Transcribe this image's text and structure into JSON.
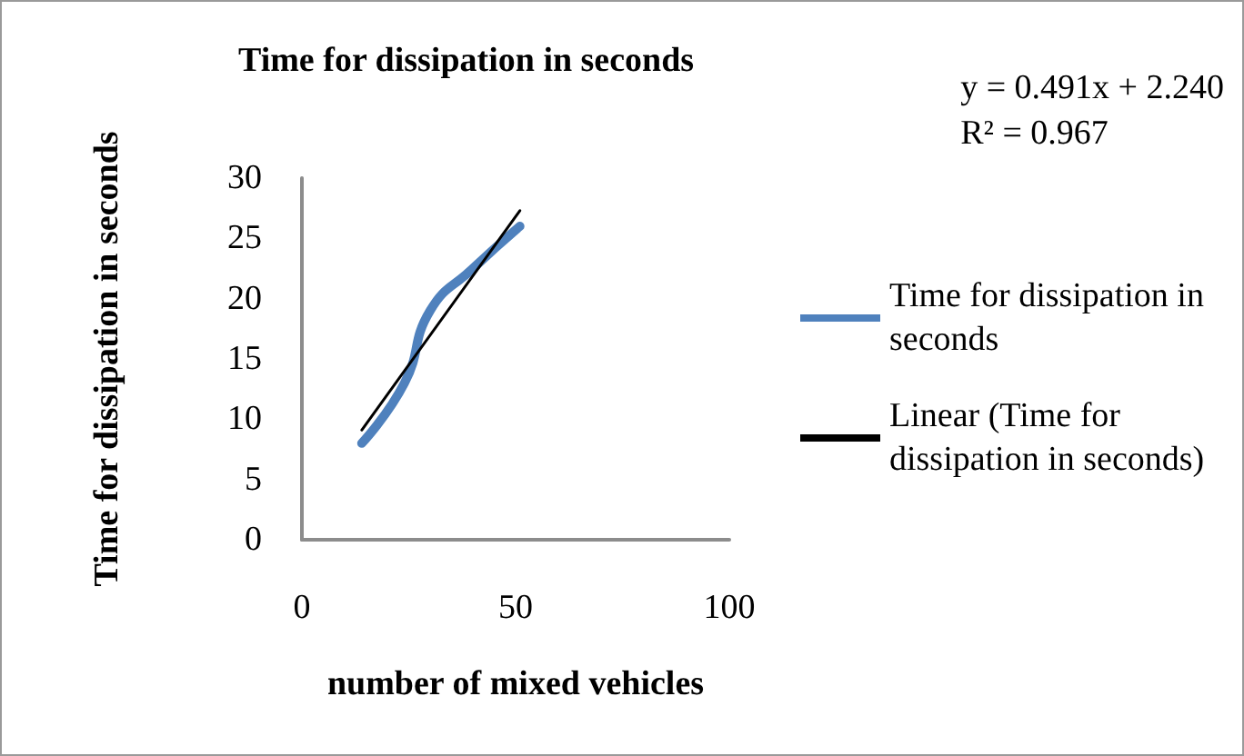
{
  "chart_data": {
    "type": "line",
    "title": "Time for dissipation in seconds",
    "xlabel": "number of mixed vehicles",
    "ylabel": "Time for dissipation in seconds",
    "annotations": [
      "y = 0.491x + 2.240\nR² = 0.967"
    ],
    "series": [
      {
        "name": "Time for dissipation in seconds",
        "color": "#4f81bd",
        "x": [
          14,
          24,
          30,
          40,
          51
        ],
        "values": [
          8,
          13,
          19,
          22.5,
          26
        ]
      },
      {
        "name": "Linear (Time for dissipation in seconds)",
        "color": "#000000",
        "x": [
          14,
          51
        ],
        "values": [
          9.1,
          27.3
        ]
      }
    ],
    "xlim": [
      0,
      100
    ],
    "xticks": [
      0,
      50,
      100
    ],
    "ylim": [
      0,
      30
    ],
    "yticks": [
      0,
      5,
      10,
      15,
      20,
      25,
      30
    ],
    "grid": false,
    "legend": "right",
    "marker": "none"
  }
}
